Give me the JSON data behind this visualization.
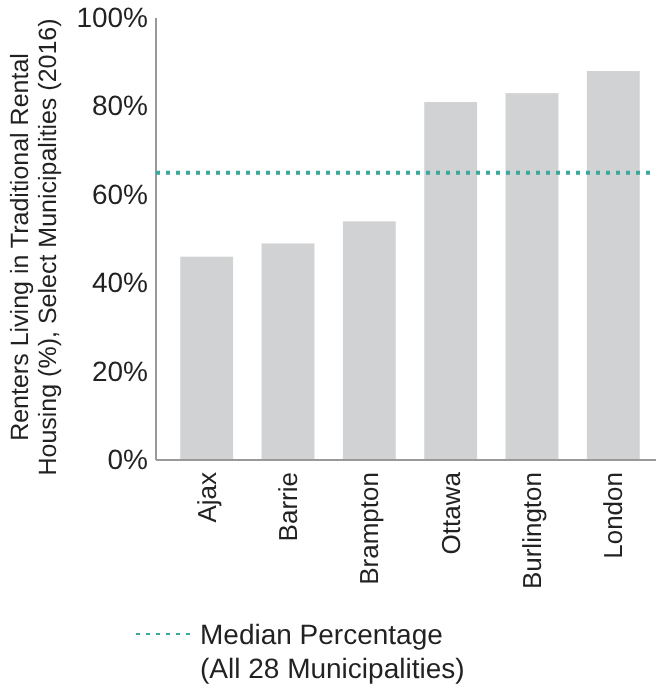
{
  "chart_data": {
    "type": "bar",
    "ylabel": "Renters Living in Traditional Rental Housing (%), Select Municipalities (2016)",
    "categories": [
      "Ajax",
      "Barrie",
      "Brampton",
      "Ottawa",
      "Burlington",
      "London"
    ],
    "values": [
      46,
      49,
      54,
      81,
      83,
      88
    ],
    "color": "#d1d2d4",
    "ylim": [
      0,
      100
    ],
    "yticks": [
      {
        "value": 0,
        "label": "0%"
      },
      {
        "value": 20,
        "label": "20%"
      },
      {
        "value": 40,
        "label": "40%"
      },
      {
        "value": 60,
        "label": "60%"
      },
      {
        "value": 80,
        "label": "80%"
      },
      {
        "value": 100,
        "label": "100%"
      }
    ],
    "ref_lines": [
      {
        "axis": "y",
        "value": 65,
        "label": "Median Percentage (All 28 Municipalities)",
        "color": "#3aa89c",
        "line_style": "dotted"
      }
    ],
    "grid": false,
    "legend": "bottom"
  }
}
